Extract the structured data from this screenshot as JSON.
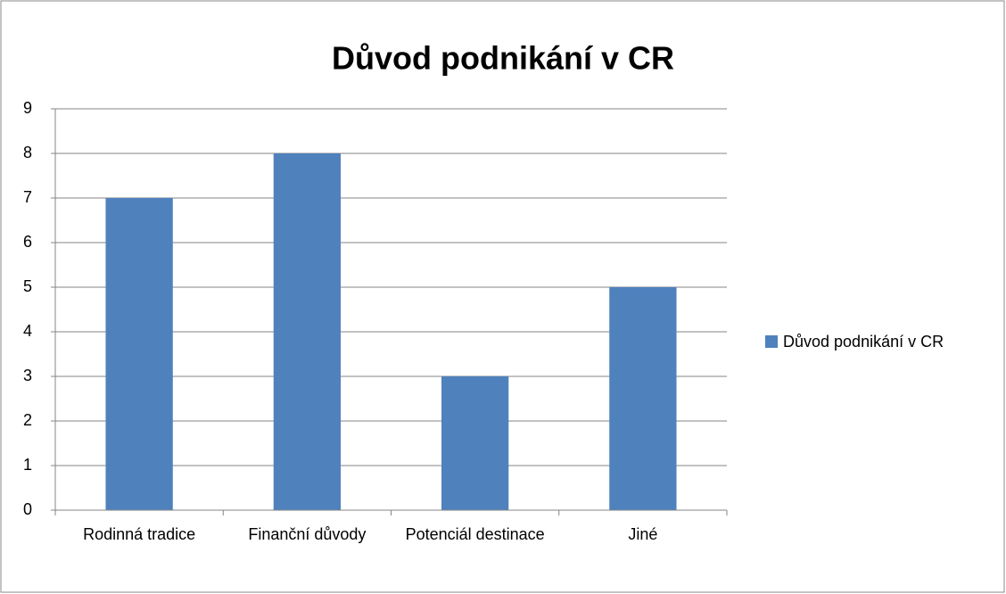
{
  "chart_data": {
    "type": "bar",
    "title": "Důvod podnikání v CR",
    "categories": [
      "Rodinná tradice",
      "Finanční důvody",
      "Potenciál destinace",
      "Jiné"
    ],
    "series": [
      {
        "name": "Důvod podnikání v CR",
        "color": "#4f81bd",
        "values": [
          7,
          8,
          3,
          5
        ]
      }
    ],
    "ylim": [
      0,
      9
    ],
    "yticks": [
      0,
      1,
      2,
      3,
      4,
      5,
      6,
      7,
      8,
      9
    ],
    "grid": true,
    "legend": "right"
  }
}
